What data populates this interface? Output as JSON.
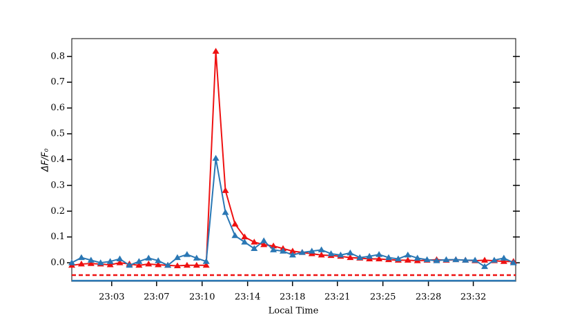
{
  "chart_data": {
    "type": "line",
    "xlabel": "Local Time",
    "ylabel": "ΔF/F₀",
    "x": [
      1379.8,
      1380.57,
      1381.34,
      1382.11,
      1382.88,
      1383.65,
      1384.42,
      1385.19,
      1385.96,
      1386.73,
      1387.5,
      1388.27,
      1389.04,
      1389.81,
      1390.58,
      1391.35,
      1392.12,
      1392.89,
      1393.66,
      1394.43,
      1395.2,
      1395.97,
      1396.74,
      1397.51,
      1398.28,
      1399.05,
      1399.82,
      1400.59,
      1401.36,
      1402.13,
      1402.9,
      1403.67,
      1404.44,
      1405.21,
      1405.98,
      1406.75,
      1407.52,
      1408.29,
      1409.06,
      1409.83,
      1410.6,
      1411.37,
      1412.14,
      1412.91,
      1413.68,
      1414.45,
      1415.22
    ],
    "series": [
      {
        "color": "#ee1111",
        "marker": "triangle",
        "values": [
          -0.01,
          -0.005,
          -0.003,
          -0.005,
          -0.008,
          0.0,
          -0.005,
          -0.01,
          -0.005,
          -0.008,
          -0.01,
          -0.012,
          -0.01,
          -0.01,
          -0.01,
          0.82,
          0.28,
          0.15,
          0.1,
          0.08,
          0.07,
          0.065,
          0.055,
          0.045,
          0.04,
          0.035,
          0.03,
          0.028,
          0.025,
          0.02,
          0.018,
          0.015,
          0.015,
          0.012,
          0.01,
          0.01,
          0.008,
          0.01,
          0.012,
          0.01,
          0.012,
          0.01,
          0.008,
          0.01,
          0.008,
          0.005,
          0.005
        ]
      },
      {
        "color": "#2a77b4",
        "marker": "triangle",
        "values": [
          0.0,
          0.02,
          0.01,
          0.0,
          0.005,
          0.015,
          -0.01,
          0.005,
          0.018,
          0.008,
          -0.01,
          0.02,
          0.032,
          0.018,
          0.005,
          0.405,
          0.195,
          0.105,
          0.08,
          0.055,
          0.085,
          0.05,
          0.045,
          0.03,
          0.04,
          0.045,
          0.05,
          0.035,
          0.03,
          0.038,
          0.02,
          0.025,
          0.032,
          0.02,
          0.015,
          0.03,
          0.018,
          0.012,
          0.008,
          0.012,
          0.012,
          0.01,
          0.01,
          -0.015,
          0.01,
          0.018,
          0.0
        ]
      }
    ],
    "reference_lines": [
      {
        "value": -0.048,
        "color": "#ee1111",
        "style": "dashed"
      },
      {
        "value": -0.0695,
        "color": "#2a77b4",
        "style": "solid"
      }
    ],
    "xlim": [
      1379.8,
      1415.4
    ],
    "ylim": [
      -0.072,
      0.869
    ],
    "xticks": [
      {
        "value": 1383.0,
        "label": "23:03"
      },
      {
        "value": 1386.6,
        "label": "23:07"
      },
      {
        "value": 1390.25,
        "label": "23:10"
      },
      {
        "value": 1393.9,
        "label": "23:14"
      },
      {
        "value": 1397.5,
        "label": "23:18"
      },
      {
        "value": 1401.1,
        "label": "23:21"
      },
      {
        "value": 1404.75,
        "label": "23:25"
      },
      {
        "value": 1408.4,
        "label": "23:28"
      },
      {
        "value": 1412.0,
        "label": "23:32"
      }
    ],
    "yticks": [
      {
        "value": 0,
        "label": "0.0"
      },
      0.1,
      0.2,
      0.3,
      0.4,
      0.5,
      0.6,
      0.7,
      0.8
    ]
  }
}
